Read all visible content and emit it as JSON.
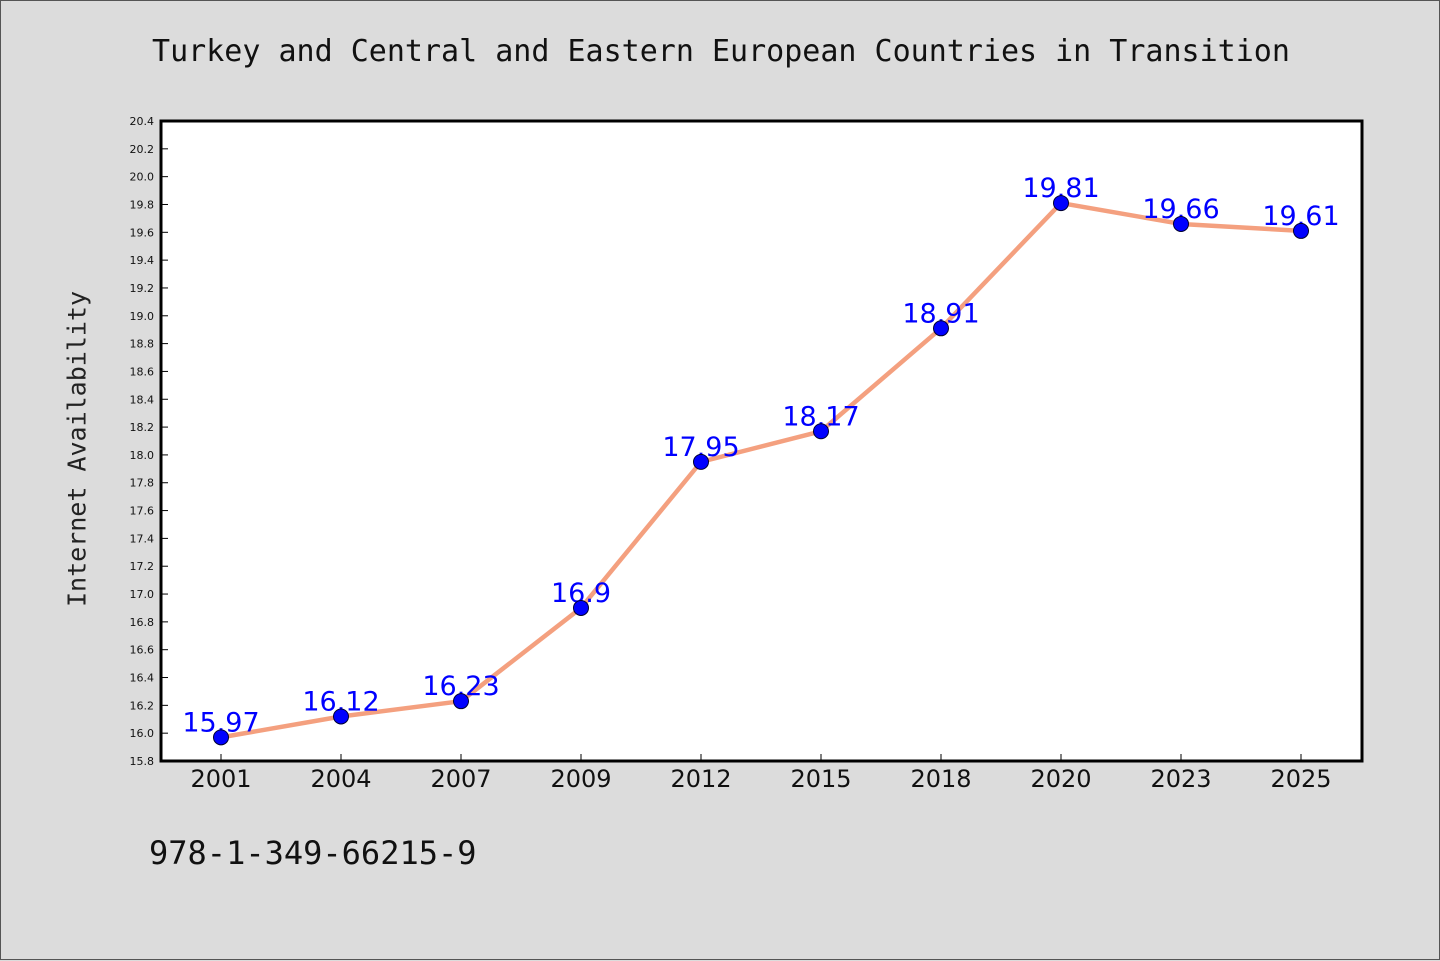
{
  "chart_data": {
    "type": "line",
    "title": "Turkey and Central and Eastern European Countries in Transition",
    "xlabel": "",
    "ylabel": "Internet Availability",
    "categories": [
      "2001",
      "2004",
      "2007",
      "2009",
      "2012",
      "2015",
      "2018",
      "2020",
      "2023",
      "2025"
    ],
    "values": [
      15.97,
      16.12,
      16.23,
      16.9,
      17.95,
      18.17,
      18.91,
      19.81,
      19.66,
      19.61
    ],
    "data_labels": [
      "15.97",
      "16.12",
      "16.23",
      "16.9",
      "17.95",
      "18.17",
      "18.91",
      "19.81",
      "19.66",
      "19.61"
    ],
    "ylim": [
      15.8,
      20.4
    ],
    "yticks": [
      "15.8",
      "16.0",
      "16.2",
      "16.4",
      "16.6",
      "16.8",
      "17.0",
      "17.2",
      "17.4",
      "17.6",
      "17.8",
      "18.0",
      "18.2",
      "18.4",
      "18.6",
      "18.8",
      "19.0",
      "19.2",
      "19.4",
      "19.6",
      "19.8",
      "20.0",
      "20.2",
      "20.4"
    ],
    "grid": false,
    "colors": {
      "line": "#f4a07f",
      "marker": "#0000ff",
      "label": "#0000ff"
    }
  },
  "footer": {
    "code": "978-1-349-66215-9"
  }
}
